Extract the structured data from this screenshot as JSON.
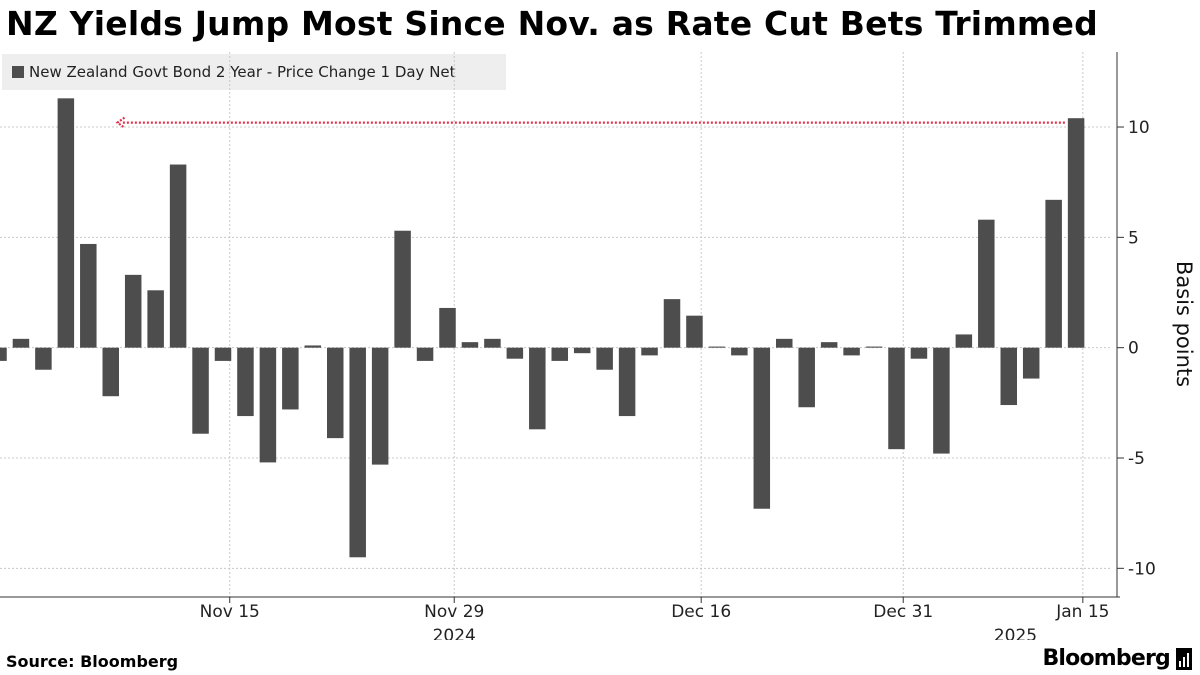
{
  "title": "NZ Yields Jump Most Since Nov. as Rate Cut Bets Trimmed",
  "source": "Source: Bloomberg",
  "brand": "Bloomberg",
  "colors": {
    "bar": "#4d4d4d",
    "annotation": "#e1314b",
    "grid": "#c8c8c8"
  },
  "chart_data": {
    "type": "bar",
    "title": "NZ Yields Jump Most Since Nov. as Rate Cut Bets Trimmed",
    "legend": "New Zealand Govt Bond 2 Year - Price Change 1 Day Net",
    "ylabel": "Basis points",
    "ylim": [
      -11.3,
      13.4
    ],
    "yticks": [
      -10,
      -5,
      0,
      5,
      10
    ],
    "series": [
      {
        "name": "New Zealand Govt Bond 2 Year - Price Change 1 Day Net",
        "values": [
          -0.6,
          0.4,
          -1.0,
          11.3,
          4.7,
          -2.2,
          3.3,
          2.6,
          8.3,
          -3.9,
          -0.6,
          -3.1,
          -5.2,
          -2.8,
          0.1,
          -4.1,
          -9.5,
          -5.3,
          5.3,
          -0.6,
          1.8,
          0.25,
          0.4,
          -0.5,
          -3.7,
          -0.6,
          -0.25,
          -1.0,
          -3.1,
          -0.35,
          2.2,
          1.45,
          0.05,
          -0.35,
          -7.3,
          0.4,
          -2.7,
          0.25,
          -0.35,
          0.05,
          -4.6,
          -0.5,
          -4.8,
          0.6,
          5.8,
          -2.6,
          -1.4,
          6.7,
          10.4
        ]
      }
    ],
    "xticks": [
      {
        "label": "Nov 15",
        "index": 10.3
      },
      {
        "label": "Nov 29",
        "index": 20.3
      },
      {
        "label": "Dec 16",
        "index": 31.3
      },
      {
        "label": "Dec 31",
        "index": 40.3
      },
      {
        "label": "Jan 15",
        "index": 48.3
      }
    ],
    "year_labels": [
      {
        "label": "2024",
        "index": 20.3
      },
      {
        "label": "2025",
        "index": 45.3
      }
    ],
    "annotation": {
      "type": "arrow",
      "value": 10.2,
      "from_index": 47.5,
      "to_index": 5.3
    }
  }
}
